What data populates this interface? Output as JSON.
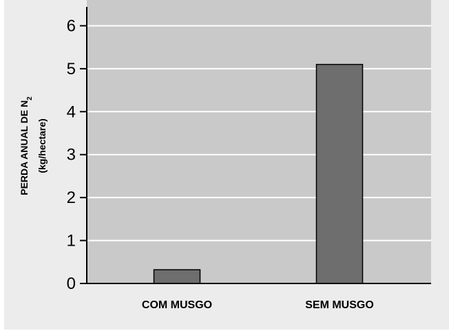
{
  "chart_data": {
    "type": "bar",
    "categories": [
      "COM MUSGO",
      "SEM MUSGO"
    ],
    "values": [
      0.32,
      5.1
    ],
    "title": "",
    "xlabel": "",
    "ylabel": {
      "line1": "PERDA ANUAL DE N",
      "line1_subscript": "2",
      "line2": "(kg/hectare)"
    },
    "ylim": [
      0,
      6.6
    ],
    "yticks": [
      0,
      1,
      2,
      3,
      4,
      5,
      6
    ],
    "grid": true,
    "colors": {
      "outer_background": "#ececec",
      "plot_background": "#c9c9c9",
      "gridline": "#ffffff",
      "bar_fill": "#6e6e6e",
      "bar_stroke": "#000000",
      "axis": "#000000"
    }
  }
}
